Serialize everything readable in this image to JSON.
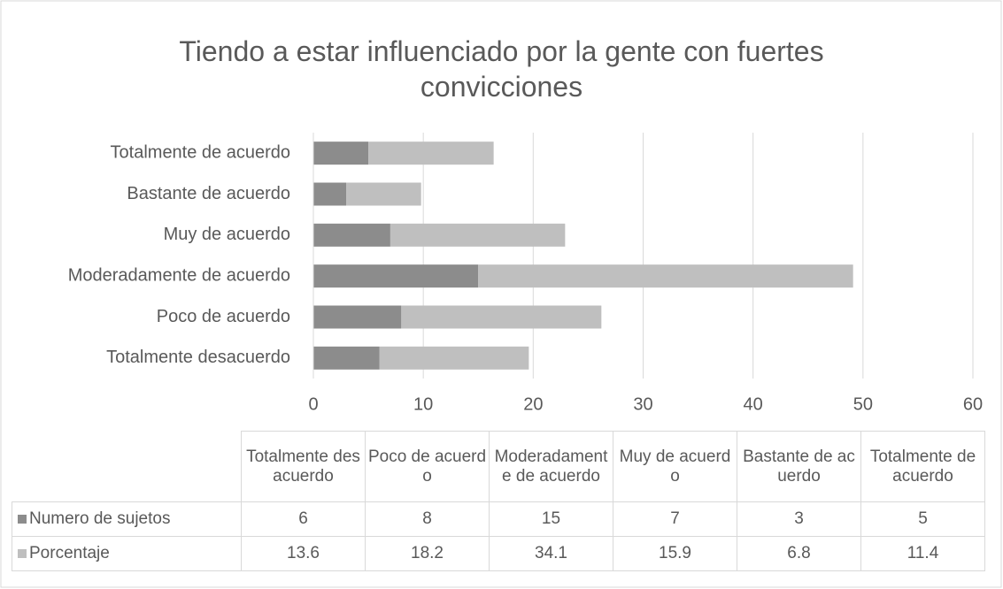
{
  "chart_data": {
    "type": "bar",
    "orientation": "horizontal",
    "stacked": true,
    "title": "Tiendo a estar influenciado por la gente con fuertes convicciones",
    "categories": [
      "Totalmente desacuerdo",
      "Poco de acuerdo",
      "Moderadamente de acuerdo",
      "Muy de acuerdo",
      "Bastante de acuerdo",
      "Totalmente de acuerdo"
    ],
    "series": [
      {
        "name": "Numero de sujetos",
        "color": "#8c8c8c",
        "values": [
          6,
          8,
          15,
          7,
          3,
          5
        ]
      },
      {
        "name": "Porcentaje",
        "color": "#bfbfbf",
        "values": [
          13.6,
          18.2,
          34.1,
          15.9,
          6.8,
          11.4
        ]
      }
    ],
    "xlim": [
      0,
      60
    ],
    "xticks": [
      0,
      10,
      20,
      30,
      40,
      50,
      60
    ],
    "grid": true,
    "data_table": true
  }
}
